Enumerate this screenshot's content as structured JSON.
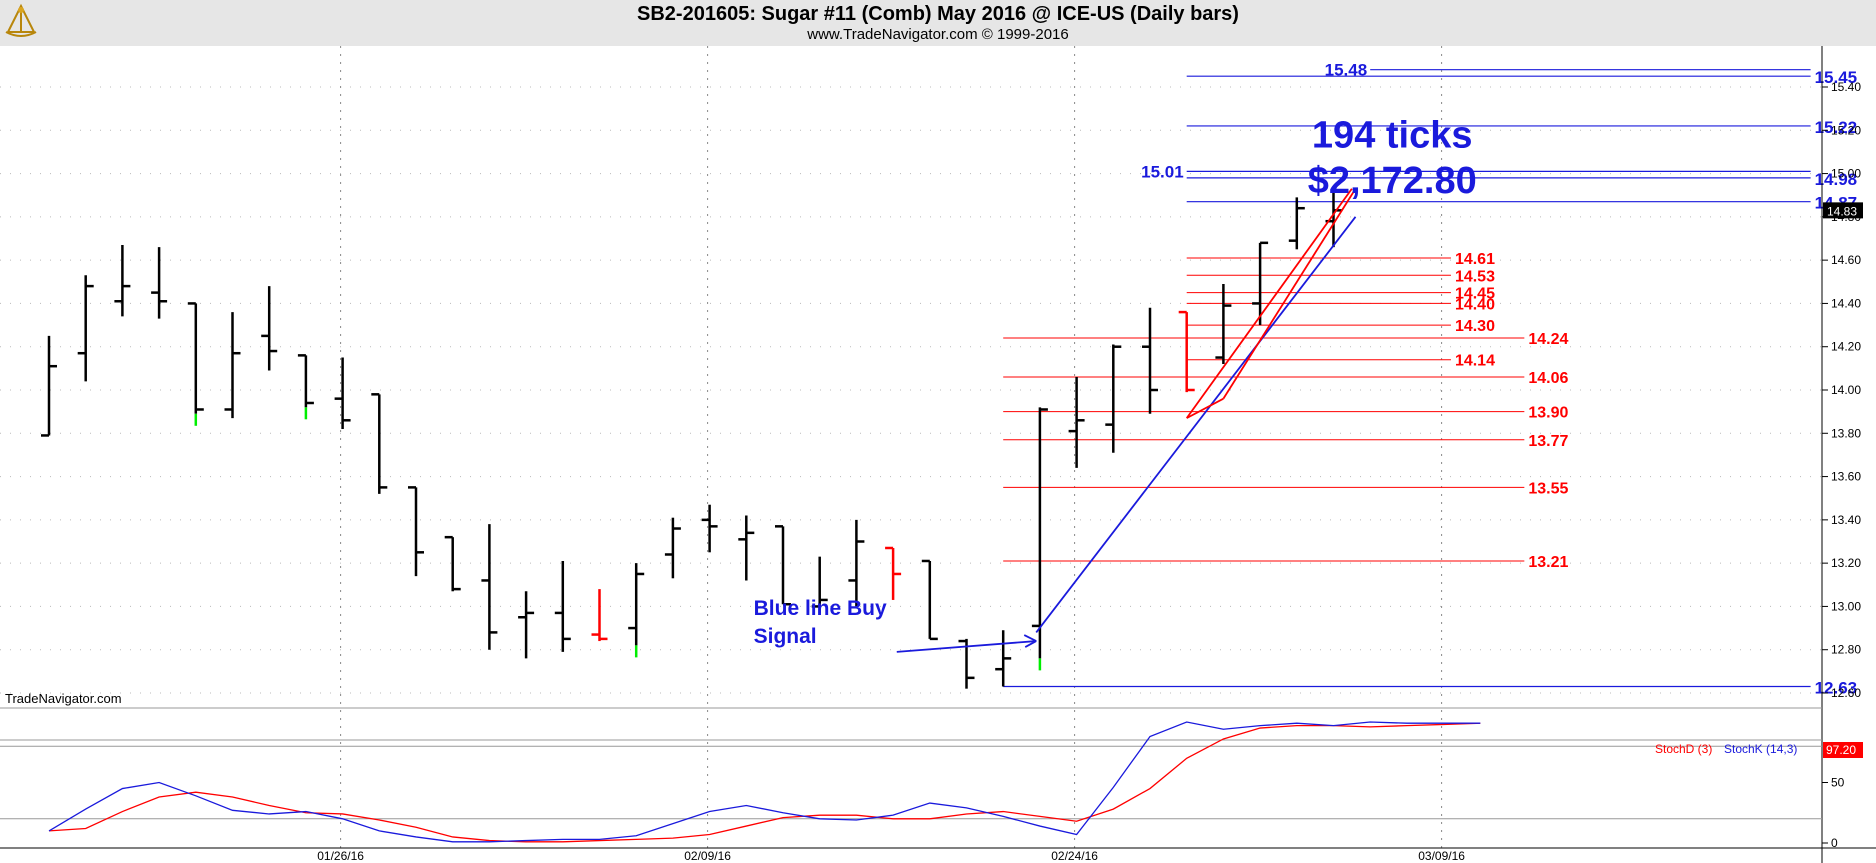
{
  "header": {
    "title": "SB2-201605:  Sugar #11 (Comb) May 2016 @ ICE-US  (Daily bars)",
    "subtitle": "www.TradeNavigator.com © 1999-2016",
    "logo_icon": "sextant-logo-icon"
  },
  "watermark": "TradeNavigator.com",
  "colors": {
    "up": "#000000",
    "down": "#000000",
    "red": "#ff0000",
    "blue": "#1a1adc",
    "green": "#00ee00",
    "grid": "#888888"
  },
  "chart_data": [
    {
      "type": "ohlc",
      "panel": "price",
      "yticks": [
        "12.60",
        "12.80",
        "13.00",
        "13.20",
        "13.40",
        "13.60",
        "13.80",
        "14.00",
        "14.20",
        "14.40",
        "14.60",
        "14.80",
        "15.00",
        "15.20",
        "15.40"
      ],
      "ylim": [
        12.55,
        15.55
      ],
      "x_tick_labels": [
        {
          "label": "01/26/16",
          "bar": 8
        },
        {
          "label": "02/09/16",
          "bar": 18
        },
        {
          "label": "02/24/16",
          "bar": 28
        },
        {
          "label": "03/09/16",
          "bar": 38
        }
      ],
      "last_price_label": "14.83",
      "bars": [
        {
          "o": 13.79,
          "h": 14.25,
          "l": 13.79,
          "c": 14.11
        },
        {
          "o": 14.17,
          "h": 14.53,
          "l": 14.04,
          "c": 14.48
        },
        {
          "o": 14.41,
          "h": 14.67,
          "l": 14.34,
          "c": 14.48
        },
        {
          "o": 14.45,
          "h": 14.66,
          "l": 14.33,
          "c": 14.41
        },
        {
          "o": 14.4,
          "h": 14.4,
          "l": 13.89,
          "c": 13.91,
          "mark": "green"
        },
        {
          "o": 13.91,
          "h": 14.36,
          "l": 13.87,
          "c": 14.17
        },
        {
          "o": 14.25,
          "h": 14.48,
          "l": 14.09,
          "c": 14.18
        },
        {
          "o": 14.16,
          "h": 14.16,
          "l": 13.92,
          "c": 13.94,
          "mark": "green"
        },
        {
          "o": 13.96,
          "h": 14.15,
          "l": 13.82,
          "c": 13.86
        },
        {
          "o": 13.98,
          "h": 13.98,
          "l": 13.52,
          "c": 13.55
        },
        {
          "o": 13.55,
          "h": 13.55,
          "l": 13.14,
          "c": 13.25
        },
        {
          "o": 13.32,
          "h": 13.32,
          "l": 13.07,
          "c": 13.08
        },
        {
          "o": 13.12,
          "h": 13.38,
          "l": 12.8,
          "c": 12.88
        },
        {
          "o": 12.95,
          "h": 13.07,
          "l": 12.76,
          "c": 12.97
        },
        {
          "o": 12.97,
          "h": 13.21,
          "l": 12.79,
          "c": 12.85
        },
        {
          "o": 12.87,
          "h": 13.08,
          "l": 12.84,
          "c": 12.85,
          "color": "red"
        },
        {
          "o": 12.9,
          "h": 13.2,
          "l": 12.82,
          "c": 13.15,
          "mark": "green"
        },
        {
          "o": 13.24,
          "h": 13.41,
          "l": 13.13,
          "c": 13.36
        },
        {
          "o": 13.4,
          "h": 13.47,
          "l": 13.25,
          "c": 13.37
        },
        {
          "o": 13.31,
          "h": 13.42,
          "l": 13.12,
          "c": 13.34
        },
        {
          "o": 13.37,
          "h": 13.37,
          "l": 13.01,
          "c": 13.01
        },
        {
          "o": 13.0,
          "h": 13.23,
          "l": 12.97,
          "c": 13.03
        },
        {
          "o": 13.12,
          "h": 13.4,
          "l": 13.0,
          "c": 13.3
        },
        {
          "o": 13.27,
          "h": 13.27,
          "l": 13.03,
          "c": 13.15,
          "color": "red"
        },
        {
          "o": 13.21,
          "h": 13.21,
          "l": 12.85,
          "c": 12.85
        },
        {
          "o": 12.84,
          "h": 12.85,
          "l": 12.62,
          "c": 12.67
        },
        {
          "o": 12.71,
          "h": 12.89,
          "l": 12.63,
          "c": 12.76
        },
        {
          "o": 12.91,
          "h": 13.92,
          "l": 12.76,
          "c": 13.91,
          "mark": "green"
        },
        {
          "o": 13.81,
          "h": 14.06,
          "l": 13.64,
          "c": 13.86
        },
        {
          "o": 13.84,
          "h": 14.21,
          "l": 13.71,
          "c": 14.2
        },
        {
          "o": 14.2,
          "h": 14.38,
          "l": 13.89,
          "c": 14.0
        },
        {
          "o": 14.36,
          "h": 14.36,
          "l": 13.99,
          "c": 14.0,
          "color": "red"
        },
        {
          "o": 14.15,
          "h": 14.49,
          "l": 14.12,
          "c": 14.39
        },
        {
          "o": 14.4,
          "h": 14.68,
          "l": 14.3,
          "c": 14.68
        },
        {
          "o": 14.69,
          "h": 14.89,
          "l": 14.65,
          "c": 14.84
        },
        {
          "o": 14.78,
          "h": 14.92,
          "l": 14.66,
          "c": 14.83
        }
      ],
      "levels_blue": [
        {
          "value": 15.48,
          "label": "15.48",
          "side": "left",
          "x0": 36,
          "x1": 48
        },
        {
          "value": 15.45,
          "label": "15.45",
          "side": "right",
          "x0": 31,
          "x1": 48
        },
        {
          "value": 15.22,
          "label": "15.22",
          "side": "right",
          "x0": 31,
          "x1": 48
        },
        {
          "value": 15.01,
          "label": "15.01",
          "side": "left",
          "x0": 31,
          "x1": 48
        },
        {
          "value": 14.98,
          "label": "14.98",
          "side": "right",
          "x0": 31,
          "x1": 48
        },
        {
          "value": 14.87,
          "label": "14.87",
          "side": "right",
          "x0": 31,
          "x1": 48
        },
        {
          "value": 12.63,
          "label": "12.63",
          "side": "right",
          "x0": 26,
          "x1": 48
        }
      ],
      "levels_red": [
        {
          "value": 14.61,
          "label": "14.61",
          "x0": 31,
          "x1": 38.2
        },
        {
          "value": 14.53,
          "label": "14.53",
          "x0": 31,
          "x1": 38.2
        },
        {
          "value": 14.45,
          "label": "14.45",
          "x0": 31,
          "x1": 38.2
        },
        {
          "value": 14.4,
          "label": "14.40",
          "x0": 31,
          "x1": 38.2
        },
        {
          "value": 14.3,
          "label": "14.30",
          "x0": 31,
          "x1": 38.2
        },
        {
          "value": 14.24,
          "label": "14.24",
          "x0": 26,
          "x1": 40.2
        },
        {
          "value": 14.14,
          "label": "14.14",
          "x0": 31,
          "x1": 38.2
        },
        {
          "value": 14.06,
          "label": "14.06",
          "x0": 26,
          "x1": 40.2
        },
        {
          "value": 13.9,
          "label": "13.90",
          "x0": 26,
          "x1": 40.2
        },
        {
          "value": 13.77,
          "label": "13.77",
          "x0": 26,
          "x1": 40.2
        },
        {
          "value": 13.55,
          "label": "13.55",
          "x0": 26,
          "x1": 40.2
        },
        {
          "value": 13.21,
          "label": "13.21",
          "x0": 26,
          "x1": 40.2
        }
      ],
      "trend_blue": {
        "from": {
          "bar": 26.9,
          "price": 12.88
        },
        "to": {
          "bar": 35.6,
          "price": 14.8
        }
      },
      "channel_red": {
        "lower": {
          "from": {
            "bar": 31,
            "price": 13.87
          },
          "to": {
            "bar": 35.5,
            "price": 14.93
          }
        },
        "upper": {
          "from": {
            "bar": 32,
            "price": 13.96
          },
          "to": {
            "bar": 35.6,
            "price": 14.93
          }
        }
      },
      "annotations": [
        {
          "text": "194 ticks",
          "bar": 36.6,
          "price": 15.12
        },
        {
          "text": "$2,172.80",
          "bar": 36.6,
          "price": 14.91
        },
        {
          "text": "Blue line Buy",
          "bar": 19.2,
          "price": 12.96
        },
        {
          "text": "Signal",
          "bar": 19.2,
          "price": 12.83
        }
      ],
      "arrow": {
        "from": {
          "bar": 23.1,
          "price": 12.79
        },
        "to": {
          "bar": 26.9,
          "price": 12.84
        }
      }
    },
    {
      "type": "line",
      "panel": "stochastic",
      "yticks": [
        "0",
        "50"
      ],
      "ylim": [
        0,
        100
      ],
      "series": [
        {
          "name": "StochD (3)",
          "color": "#ff0000",
          "values": [
            10,
            12,
            26,
            38,
            42,
            38,
            31,
            25,
            24,
            19,
            13,
            5,
            2,
            1,
            1,
            2,
            3,
            4,
            7,
            14,
            21,
            23,
            23,
            20,
            20,
            24,
            26,
            22,
            18,
            28,
            45,
            70,
            86,
            95,
            97,
            97,
            96,
            97,
            98,
            99
          ]
        },
        {
          "name": "StochK (14,3)",
          "color": "#1a1adc",
          "values": [
            10,
            28,
            45,
            50,
            39,
            27,
            24,
            26,
            20,
            10,
            5,
            1,
            1,
            2,
            3,
            3,
            6,
            16,
            26,
            31,
            25,
            20,
            19,
            23,
            33,
            29,
            22,
            14,
            7,
            46,
            88,
            100,
            94,
            97,
            99,
            97,
            100,
            99,
            99,
            99
          ]
        }
      ],
      "readout": "97.20",
      "upper_band": 80,
      "lower_band": 20
    }
  ]
}
